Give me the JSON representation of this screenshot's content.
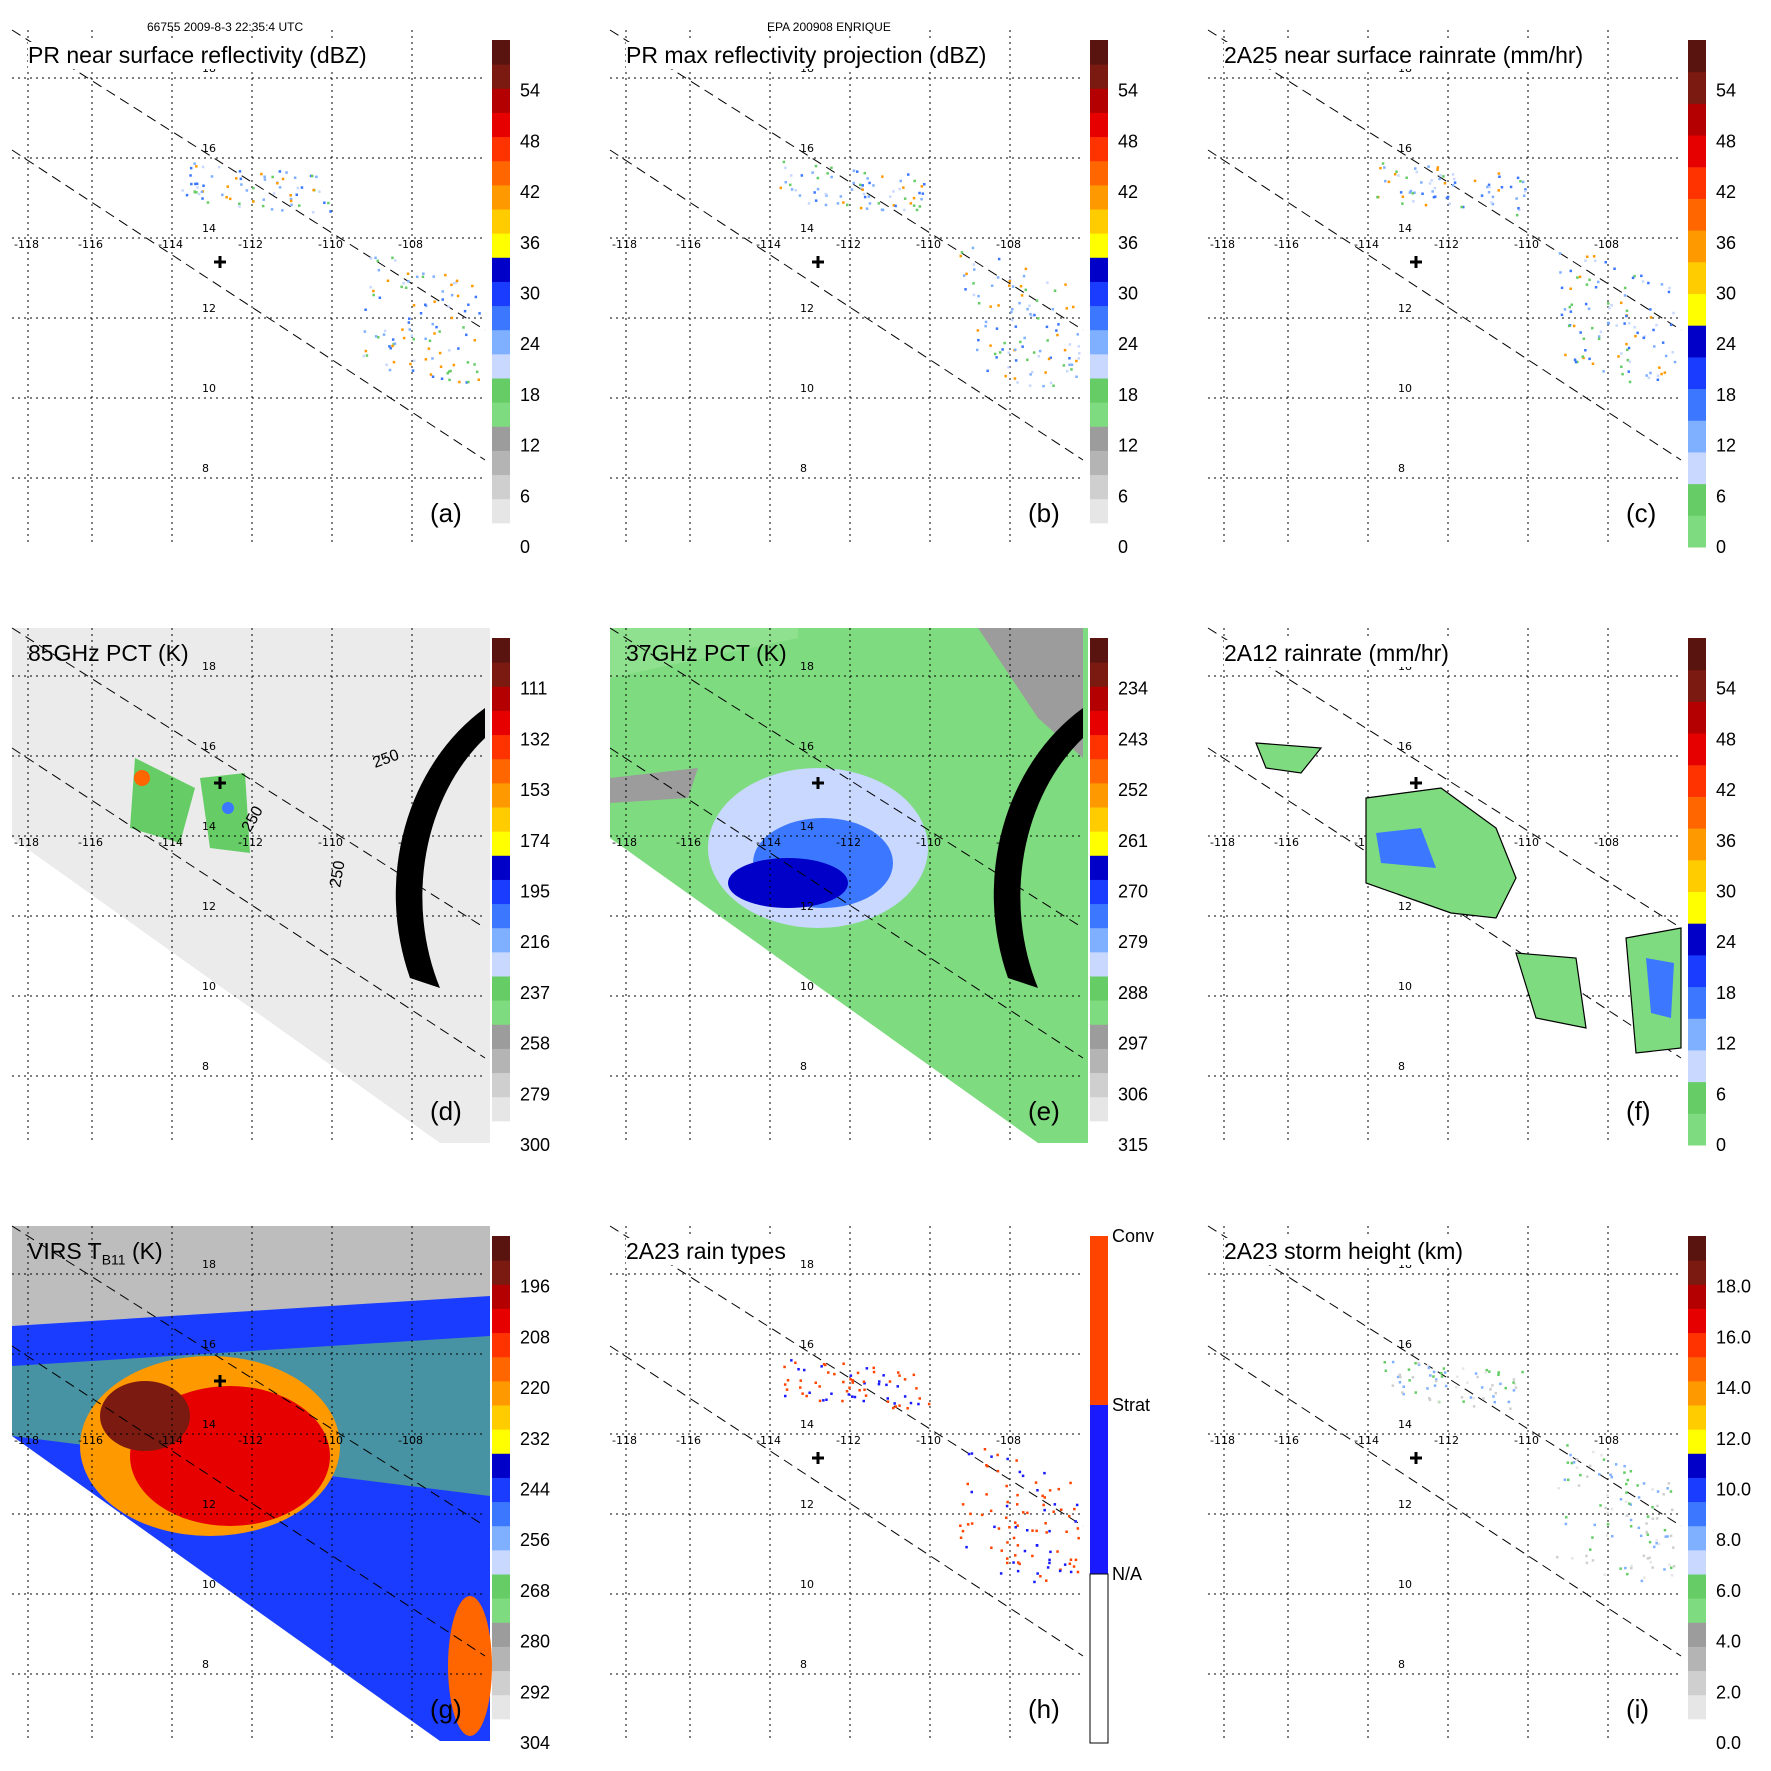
{
  "header": {
    "left": "66755 2009-8-3 22:35:4 UTC",
    "center": "EPA 200908 ENRIQUE"
  },
  "map": {
    "lon_ticks": [
      "-118",
      "-116",
      "-114",
      "-112",
      "-110",
      "-108"
    ],
    "lat_ticks": [
      "18",
      "16",
      "14",
      "12",
      "10",
      "8"
    ],
    "center_marker": "storm-center-cross"
  },
  "colors": {
    "refl": [
      "#ffffff",
      "#e6e6e6",
      "#cfcfcf",
      "#b4b4b4",
      "#9c9c9c",
      "#7fdb7f",
      "#66cc66",
      "#c8d8ff",
      "#7fb0ff",
      "#3c78ff",
      "#1a3cff",
      "#0000c8",
      "#ffff00",
      "#ffcc00",
      "#ff9900",
      "#ff6600",
      "#ff3300",
      "#e60000",
      "#b40000",
      "#7a1a10",
      "#5a1410"
    ],
    "rain": [
      "#7fdb7f",
      "#66cc66",
      "#c8d8ff",
      "#7fb0ff",
      "#3c78ff",
      "#1a3cff",
      "#0000c8",
      "#ffff00",
      "#ffcc00",
      "#ff9900",
      "#ff6600",
      "#ff3300",
      "#e60000",
      "#b40000",
      "#7a1a10",
      "#5a1410"
    ],
    "rain_type": [
      "#ffffff",
      "#1a1aff",
      "#ff4400"
    ]
  },
  "chart_data": [
    {
      "id": "a",
      "type": "heatmap",
      "title": "PR near surface reflectivity (dBZ)",
      "letter": "(a)",
      "colorbar": {
        "labels": [
          "0",
          "6",
          "12",
          "18",
          "24",
          "30",
          "36",
          "42",
          "48",
          "54"
        ],
        "range": [
          0,
          60
        ]
      }
    },
    {
      "id": "b",
      "type": "heatmap",
      "title": "PR max reflectivity projection (dBZ)",
      "letter": "(b)",
      "colorbar": {
        "labels": [
          "0",
          "6",
          "12",
          "18",
          "24",
          "30",
          "36",
          "42",
          "48",
          "54"
        ],
        "range": [
          0,
          60
        ]
      }
    },
    {
      "id": "c",
      "type": "heatmap",
      "title": "2A25 near surface rainrate (mm/hr)",
      "letter": "(c)",
      "colorbar": {
        "labels": [
          "0",
          "6",
          "12",
          "18",
          "24",
          "30",
          "36",
          "42",
          "48",
          "54"
        ],
        "range": [
          0,
          60
        ]
      }
    },
    {
      "id": "d",
      "type": "heatmap",
      "title": "85GHz PCT (K)",
      "letter": "(d)",
      "colorbar": {
        "labels": [
          "300",
          "279",
          "258",
          "237",
          "216",
          "195",
          "174",
          "153",
          "132",
          "111"
        ],
        "range": [
          300,
          90
        ]
      },
      "annotations": [
        "250",
        "250",
        "250"
      ]
    },
    {
      "id": "e",
      "type": "heatmap",
      "title": "37GHz PCT (K)",
      "letter": "(e)",
      "colorbar": {
        "labels": [
          "315",
          "306",
          "297",
          "288",
          "279",
          "270",
          "261",
          "252",
          "243",
          "234"
        ],
        "range": [
          315,
          225
        ]
      }
    },
    {
      "id": "f",
      "type": "heatmap",
      "title": "2A12 rainrate (mm/hr)",
      "letter": "(f)",
      "colorbar": {
        "labels": [
          "0",
          "6",
          "12",
          "18",
          "24",
          "30",
          "36",
          "42",
          "48",
          "54"
        ],
        "range": [
          0,
          60
        ]
      }
    },
    {
      "id": "g",
      "type": "heatmap",
      "title": "VIRS T",
      "title_sub": "B11",
      "title_after": " (K)",
      "letter": "(g)",
      "colorbar": {
        "labels": [
          "304",
          "292",
          "280",
          "268",
          "256",
          "244",
          "232",
          "220",
          "208",
          "196"
        ],
        "range": [
          304,
          184
        ]
      }
    },
    {
      "id": "h",
      "type": "heatmap",
      "title": "2A23 rain types",
      "letter": "(h)",
      "colorbar": {
        "labels": [
          "N/A",
          "Strat",
          "Conv"
        ],
        "categorical": true
      }
    },
    {
      "id": "i",
      "type": "heatmap",
      "title": "2A23 storm height (km)",
      "letter": "(i)",
      "colorbar": {
        "labels": [
          "0.0",
          "2.0",
          "4.0",
          "6.0",
          "8.0",
          "10.0",
          "12.0",
          "14.0",
          "16.0",
          "18.0"
        ],
        "range": [
          0,
          20
        ]
      }
    }
  ]
}
